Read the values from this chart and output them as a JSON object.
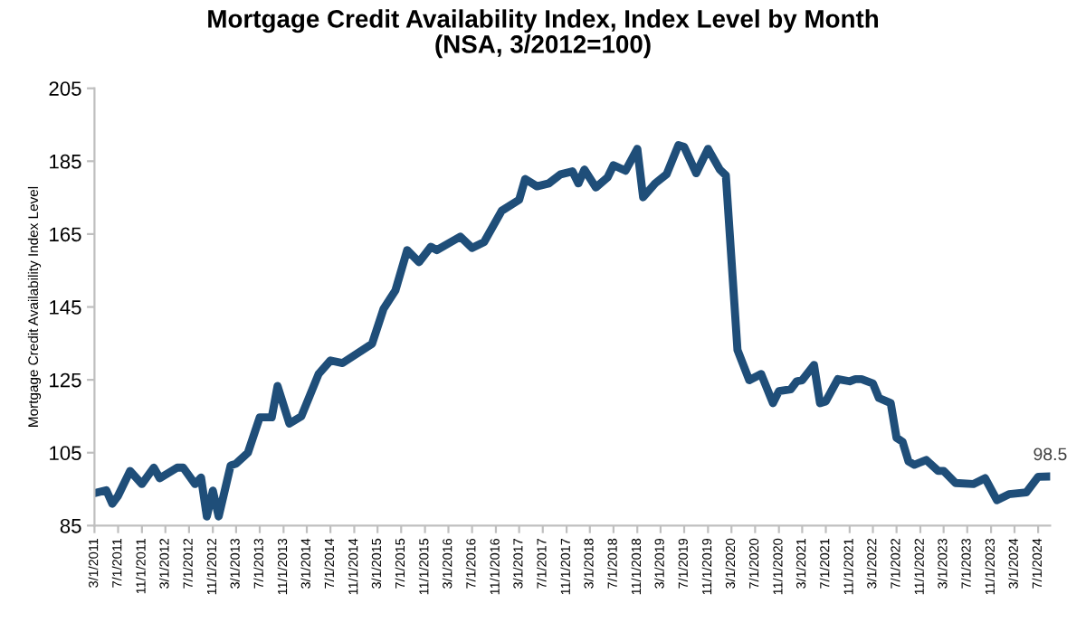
{
  "chart_data": {
    "type": "line",
    "title": "Mortgage Credit Availability Index, Index Level by Month\n(NSA, 3/2012=100)",
    "ylabel": "Mortgage Credit Availability Index Level",
    "x": [
      "2011-03",
      "2011-05",
      "2011-06",
      "2011-07",
      "2011-09",
      "2011-11",
      "2012-01",
      "2012-02",
      "2012-05",
      "2012-06",
      "2012-08",
      "2012-09",
      "2012-10",
      "2012-11",
      "2012-12",
      "2013-02",
      "2013-03",
      "2013-05",
      "2013-07",
      "2013-09",
      "2013-10",
      "2013-12",
      "2014-02",
      "2014-05",
      "2014-07",
      "2014-09",
      "2015-02",
      "2015-04",
      "2015-06",
      "2015-08",
      "2015-10",
      "2015-12",
      "2016-01",
      "2016-05",
      "2016-07",
      "2016-09",
      "2016-12",
      "2017-03",
      "2017-04",
      "2017-06",
      "2017-08",
      "2017-10",
      "2017-12",
      "2018-01",
      "2018-02",
      "2018-04",
      "2018-06",
      "2018-07",
      "2018-09",
      "2018-11",
      "2018-12",
      "2019-02",
      "2019-04",
      "2019-06",
      "2019-07",
      "2019-09",
      "2019-10",
      "2019-11",
      "2020-01",
      "2020-02",
      "2020-04",
      "2020-06",
      "2020-08",
      "2020-10",
      "2020-11",
      "2021-01",
      "2021-02",
      "2021-03",
      "2021-05",
      "2021-06",
      "2021-07",
      "2021-09",
      "2021-11",
      "2021-12",
      "2022-01",
      "2022-03",
      "2022-04",
      "2022-06",
      "2022-07",
      "2022-08",
      "2022-09",
      "2022-10",
      "2022-12",
      "2023-02",
      "2023-03",
      "2023-05",
      "2023-08",
      "2023-10",
      "2023-12",
      "2024-02",
      "2024-05",
      "2024-07",
      "2024-09"
    ],
    "series": [
      {
        "color": "#1f4e79",
        "values": [
          93.9,
          94.7,
          91.0,
          93.2,
          100,
          96.4,
          100.9,
          98,
          100.9,
          100.9,
          96.4,
          98.2,
          87.5,
          94.6,
          87.5,
          101.5,
          102,
          105,
          114.7,
          114.7,
          123.3,
          113,
          115,
          126.6,
          130.3,
          129.6,
          134.9,
          144.5,
          149.5,
          160.6,
          157.3,
          161.5,
          160.6,
          164.3,
          161.2,
          162.8,
          171.4,
          174.4,
          180.1,
          178.1,
          178.9,
          181.4,
          182.2,
          178.9,
          182.7,
          177.8,
          180.6,
          183.9,
          182.4,
          188.4,
          175.1,
          178.9,
          181.4,
          189.4,
          188.9,
          181.7,
          185,
          188.4,
          182.7,
          181.1,
          133.2,
          124.9,
          126.6,
          118.6,
          121.9,
          122.4,
          124.6,
          124.9,
          129.1,
          118.6,
          119.1,
          125.2,
          124.6,
          125.2,
          125.2,
          124,
          120,
          118.6,
          109.1,
          108,
          102.6,
          101.7,
          103,
          100,
          100,
          96.7,
          96.4,
          98,
          92,
          93.6,
          94.1,
          98.4,
          98.5
        ]
      }
    ],
    "annotations": [
      {
        "text": "98.5",
        "x": "2024-09",
        "y": 98.5
      }
    ],
    "xlim": [
      "2011-03",
      "2024-09"
    ],
    "xticks": [
      {
        "value": "2011-03",
        "label": "3/1/2011"
      },
      {
        "value": "2011-07",
        "label": "7/1/2011"
      },
      {
        "value": "2011-11",
        "label": "11/1/2011"
      },
      {
        "value": "2012-03",
        "label": "3/1/2012"
      },
      {
        "value": "2012-07",
        "label": "7/1/2012"
      },
      {
        "value": "2012-11",
        "label": "11/1/2012"
      },
      {
        "value": "2013-03",
        "label": "3/1/2013"
      },
      {
        "value": "2013-07",
        "label": "7/1/2013"
      },
      {
        "value": "2013-11",
        "label": "11/1/2013"
      },
      {
        "value": "2014-03",
        "label": "3/1/2014"
      },
      {
        "value": "2014-07",
        "label": "7/1/2014"
      },
      {
        "value": "2014-11",
        "label": "11/1/2014"
      },
      {
        "value": "2015-03",
        "label": "3/1/2015"
      },
      {
        "value": "2015-07",
        "label": "7/1/2015"
      },
      {
        "value": "2015-11",
        "label": "11/1/2015"
      },
      {
        "value": "2016-03",
        "label": "3/1/2016"
      },
      {
        "value": "2016-07",
        "label": "7/1/2016"
      },
      {
        "value": "2016-11",
        "label": "11/1/2016"
      },
      {
        "value": "2017-03",
        "label": "3/1/2017"
      },
      {
        "value": "2017-07",
        "label": "7/1/2017"
      },
      {
        "value": "2017-11",
        "label": "11/1/2017"
      },
      {
        "value": "2018-03",
        "label": "3/1/2018"
      },
      {
        "value": "2018-07",
        "label": "7/1/2018"
      },
      {
        "value": "2018-11",
        "label": "11/1/2018"
      },
      {
        "value": "2019-03",
        "label": "3/1/2019"
      },
      {
        "value": "2019-07",
        "label": "7/1/2019"
      },
      {
        "value": "2019-11",
        "label": "11/1/2019"
      },
      {
        "value": "2020-03",
        "label": "3/1/2020"
      },
      {
        "value": "2020-07",
        "label": "7/1/2020"
      },
      {
        "value": "2020-11",
        "label": "11/1/2020"
      },
      {
        "value": "2021-03",
        "label": "3/1/2021"
      },
      {
        "value": "2021-07",
        "label": "7/1/2021"
      },
      {
        "value": "2021-11",
        "label": "11/1/2021"
      },
      {
        "value": "2022-03",
        "label": "3/1/2022"
      },
      {
        "value": "2022-07",
        "label": "7/1/2022"
      },
      {
        "value": "2022-11",
        "label": "11/1/2022"
      },
      {
        "value": "2023-03",
        "label": "3/1/2023"
      },
      {
        "value": "2023-07",
        "label": "7/1/2023"
      },
      {
        "value": "2023-11",
        "label": "11/1/2023"
      },
      {
        "value": "2024-03",
        "label": "3/1/2024"
      },
      {
        "value": "2024-07",
        "label": "7/1/2024"
      }
    ],
    "ylim": [
      85,
      205
    ],
    "yticks": [
      85,
      105,
      125,
      145,
      165,
      185,
      205
    ],
    "grid": false,
    "legend": false
  }
}
